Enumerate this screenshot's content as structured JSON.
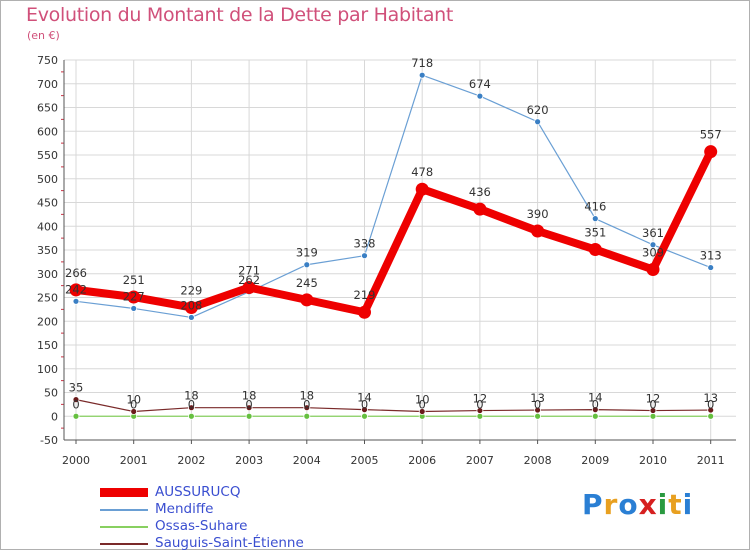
{
  "title": "Evolution du Montant de la Dette par Habitant",
  "unit_label": "(en €)",
  "logo": {
    "letters": [
      "P",
      "r",
      "o",
      "x",
      "i",
      "t",
      "i"
    ],
    "colors": [
      "#2a7fd4",
      "#e8a020",
      "#2a7fd4",
      "#d62020",
      "#2a9a40",
      "#e8a020",
      "#2a7fd4"
    ]
  },
  "chart_data": {
    "type": "line",
    "title": "Evolution du Montant de la Dette par Habitant",
    "ylabel": "(en €)",
    "xlabel": "",
    "ylim": [
      -50,
      750
    ],
    "yticks": [
      -50,
      0,
      50,
      100,
      150,
      200,
      250,
      300,
      350,
      400,
      450,
      500,
      550,
      600,
      650,
      700,
      750
    ],
    "x": [
      "2000",
      "2001",
      "2002",
      "2003",
      "2004",
      "2005",
      "2006",
      "2007",
      "2008",
      "2009",
      "2010",
      "2011"
    ],
    "series": [
      {
        "name": "Mendiffe",
        "color": "#6a9fd4",
        "marker": "#3a7fc4",
        "line_weight": "thin",
        "values": [
          242,
          227,
          208,
          262,
          319,
          338,
          718,
          674,
          620,
          416,
          361,
          313
        ]
      },
      {
        "name": "Ossas-Suhare",
        "color": "#88d060",
        "marker": "#66c040",
        "line_weight": "thin",
        "values": [
          0,
          0,
          0,
          0,
          0,
          0,
          0,
          0,
          0,
          0,
          0,
          0
        ]
      },
      {
        "name": "Sauguis-Saint-Étienne",
        "color": "#7a2a2a",
        "marker": "#6a1a1a",
        "line_weight": "thin",
        "values": [
          35,
          10,
          18,
          18,
          18,
          14,
          10,
          12,
          13,
          14,
          12,
          13
        ]
      },
      {
        "name": "AUSSURUCQ",
        "color": "#ee0000",
        "marker": "#ee0000",
        "line_weight": "thick",
        "values": [
          266,
          251,
          229,
          271,
          245,
          219,
          478,
          436,
          390,
          351,
          309,
          557
        ]
      }
    ],
    "legend": [
      "AUSSURUCQ",
      "Mendiffe",
      "Ossas-Suhare",
      "Sauguis-Saint-Étienne"
    ],
    "legend_position": "bottom-left",
    "grid": true
  }
}
